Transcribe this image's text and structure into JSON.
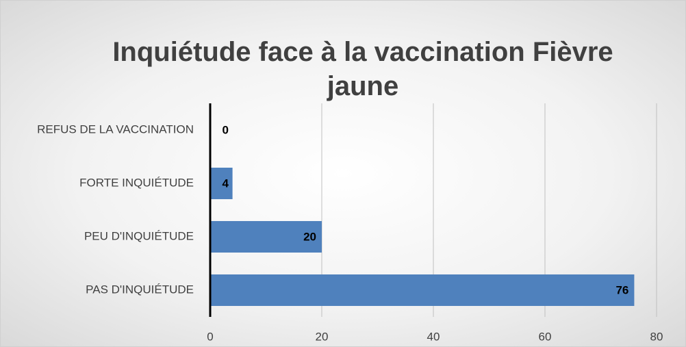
{
  "chart_data": {
    "type": "bar",
    "orientation": "horizontal",
    "title": "Inquiétude face à la vaccination Fièvre jaune",
    "categories": [
      "REFUS DE LA VACCINATION",
      "FORTE INQUIÉTUDE",
      "PEU D'INQUIÉTUDE",
      "PAS D'INQUIÉTUDE"
    ],
    "values": [
      0,
      4,
      20,
      76
    ],
    "color": "#4f81bd",
    "xlim": [
      0,
      80
    ],
    "xticks": [
      0,
      20,
      40,
      60,
      80
    ],
    "grid": true
  }
}
